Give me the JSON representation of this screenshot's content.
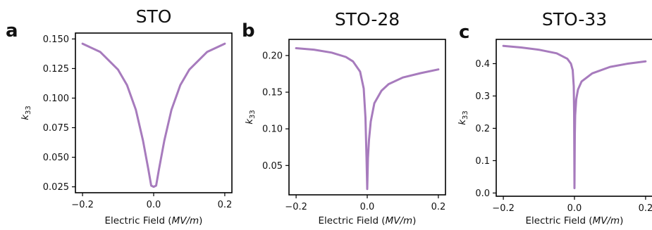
{
  "colors": {
    "curve": "#a77bbd"
  },
  "chart_data": [
    {
      "type": "line",
      "panel_letter": "a",
      "title": "STO",
      "xlabel_main": "Electric Field (",
      "xlabel_italic": "MV/m",
      "xlabel_end": ")",
      "ylabel_base": "k",
      "ylabel_sub": "33",
      "xlim": [
        -0.22,
        0.22
      ],
      "ylim": [
        0.02,
        0.155
      ],
      "xticks": [
        -0.2,
        0.0,
        0.2
      ],
      "xtick_labels": [
        "−0.2",
        "0.0",
        "0.2"
      ],
      "yticks": [
        0.025,
        0.05,
        0.075,
        0.1,
        0.125,
        0.15
      ],
      "ytick_labels": [
        "0.025",
        "0.050",
        "0.075",
        "0.100",
        "0.125",
        "0.150"
      ],
      "series": [
        {
          "x": [
            -0.2,
            -0.15,
            -0.1,
            -0.075,
            -0.05,
            -0.03,
            -0.015,
            -0.007,
            0.0,
            0.007,
            0.015,
            0.03,
            0.05,
            0.075,
            0.1,
            0.15,
            0.2
          ],
          "y": [
            0.146,
            0.139,
            0.124,
            0.111,
            0.09,
            0.064,
            0.04,
            0.026,
            0.025,
            0.026,
            0.04,
            0.064,
            0.09,
            0.111,
            0.124,
            0.139,
            0.146
          ]
        }
      ]
    },
    {
      "type": "line",
      "panel_letter": "b",
      "title": "STO-28",
      "xlabel_main": "Electric Field (",
      "xlabel_italic": "MV/m",
      "xlabel_end": ")",
      "ylabel_base": "k",
      "ylabel_sub": "33",
      "xlim": [
        -0.22,
        0.22
      ],
      "ylim": [
        0.01,
        0.222
      ],
      "xticks": [
        -0.2,
        0.0,
        0.2
      ],
      "xtick_labels": [
        "−0.2",
        "0.0",
        "0.2"
      ],
      "yticks": [
        0.05,
        0.1,
        0.15,
        0.2
      ],
      "ytick_labels": [
        "0.05",
        "0.10",
        "0.15",
        "0.20"
      ],
      "series": [
        {
          "x": [
            -0.2,
            -0.15,
            -0.1,
            -0.06,
            -0.04,
            -0.02,
            -0.01,
            -0.005,
            -0.002,
            0.0,
            0.002,
            0.005,
            0.01,
            0.02,
            0.04,
            0.06,
            0.1,
            0.15,
            0.2
          ],
          "y": [
            0.21,
            0.208,
            0.204,
            0.198,
            0.192,
            0.178,
            0.155,
            0.115,
            0.06,
            0.018,
            0.06,
            0.085,
            0.11,
            0.135,
            0.152,
            0.161,
            0.17,
            0.176,
            0.181
          ]
        }
      ]
    },
    {
      "type": "line",
      "panel_letter": "c",
      "title": "STO-33",
      "xlabel_main": "Electric Field (",
      "xlabel_italic": "MV/m",
      "xlabel_end": ")",
      "ylabel_base": "k",
      "ylabel_sub": "33",
      "xlim": [
        -0.22,
        0.22
      ],
      "ylim": [
        -0.01,
        0.475
      ],
      "xticks": [
        -0.2,
        0.0,
        0.2
      ],
      "xtick_labels": [
        "−0.2",
        "0.0",
        "0.2"
      ],
      "yticks": [
        0.0,
        0.1,
        0.2,
        0.3,
        0.4
      ],
      "ytick_labels": [
        "0.0",
        "0.1",
        "0.2",
        "0.3",
        "0.4"
      ],
      "series": [
        {
          "x": [
            -0.2,
            -0.15,
            -0.1,
            -0.05,
            -0.02,
            -0.01,
            -0.005,
            -0.002,
            -0.001,
            0.0,
            0.001,
            0.002,
            0.005,
            0.01,
            0.02,
            0.05,
            0.1,
            0.15,
            0.2
          ],
          "y": [
            0.455,
            0.45,
            0.443,
            0.432,
            0.415,
            0.4,
            0.38,
            0.33,
            0.25,
            0.015,
            0.18,
            0.24,
            0.29,
            0.32,
            0.345,
            0.37,
            0.39,
            0.4,
            0.407
          ]
        }
      ]
    }
  ]
}
